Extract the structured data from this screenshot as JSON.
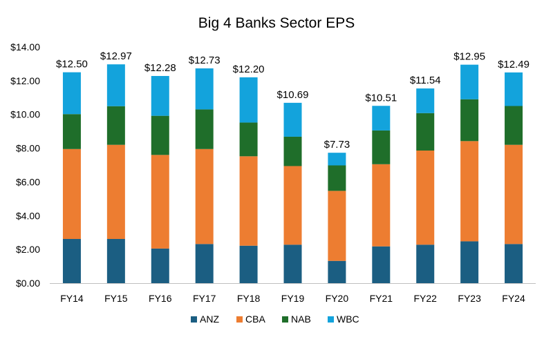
{
  "chart_data": {
    "type": "bar",
    "stacked": true,
    "title": "Big 4 Banks Sector EPS",
    "xlabel": "",
    "ylabel": "",
    "categories": [
      "FY14",
      "FY15",
      "FY16",
      "FY17",
      "FY18",
      "FY19",
      "FY20",
      "FY21",
      "FY22",
      "FY23",
      "FY24"
    ],
    "series": [
      {
        "name": "ANZ",
        "color": "#1b5e82",
        "values": [
          2.62,
          2.62,
          2.05,
          2.32,
          2.22,
          2.28,
          1.32,
          2.18,
          2.28,
          2.48,
          2.32
        ]
      },
      {
        "name": "CBA",
        "color": "#ed7d31",
        "values": [
          5.33,
          5.58,
          5.55,
          5.63,
          5.3,
          4.66,
          4.15,
          4.87,
          5.58,
          5.94,
          5.88
        ]
      },
      {
        "name": "NAB",
        "color": "#1f6e2a",
        "values": [
          2.07,
          2.29,
          2.32,
          2.35,
          2.0,
          1.74,
          1.51,
          2.0,
          2.22,
          2.48,
          2.3
        ]
      },
      {
        "name": "WBC",
        "color": "#13a3dc",
        "values": [
          2.48,
          2.48,
          2.36,
          2.43,
          2.68,
          2.01,
          0.75,
          1.46,
          1.46,
          2.05,
          1.99
        ]
      }
    ],
    "totals": [
      "$12.50",
      "$12.97",
      "$12.28",
      "$12.73",
      "$12.20",
      "$10.69",
      "$7.73",
      "$10.51",
      "$11.54",
      "$12.95",
      "$12.49"
    ],
    "ylim": [
      0,
      14
    ],
    "yticks": [
      0,
      2,
      4,
      6,
      8,
      10,
      12,
      14
    ],
    "ytick_labels": [
      "$0.00",
      "$2.00",
      "$4.00",
      "$6.00",
      "$8.00",
      "$10.00",
      "$12.00",
      "$14.00"
    ],
    "grid": false,
    "legend_position": "bottom"
  }
}
